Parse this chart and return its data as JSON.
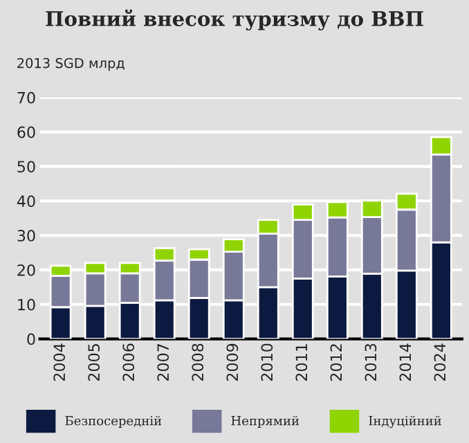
{
  "chart_data": {
    "type": "bar",
    "title": "Повний внесок туризму до ВВП",
    "ylabel": "2013 SGD млрд",
    "categories": [
      "2004",
      "2005",
      "2006",
      "2007",
      "2008",
      "2009",
      "2010",
      "2011",
      "2012",
      "2013",
      "2014",
      "2024"
    ],
    "stacked": true,
    "series": [
      {
        "name": "Безпосередній",
        "color": "#0d1a40",
        "values": [
          9.2,
          9.6,
          10.5,
          11.2,
          11.9,
          11.2,
          15.0,
          17.5,
          18.1,
          18.9,
          19.8,
          28.0
        ]
      },
      {
        "name": "Непрямий",
        "color": "#787898",
        "values": [
          9.1,
          9.4,
          8.5,
          11.5,
          11.1,
          14.1,
          15.5,
          17.0,
          17.1,
          16.4,
          17.7,
          25.5
        ]
      },
      {
        "name": "Індуційний",
        "color": "#8fd400",
        "values": [
          2.9,
          3.0,
          3.0,
          3.6,
          3.0,
          3.6,
          4.0,
          4.5,
          4.5,
          4.8,
          4.6,
          5.0
        ]
      }
    ],
    "ylim": [
      0,
      70
    ],
    "yticks": [
      0,
      10,
      20,
      30,
      40,
      50,
      60,
      70
    ],
    "grid": "y",
    "legend": "bottom"
  }
}
